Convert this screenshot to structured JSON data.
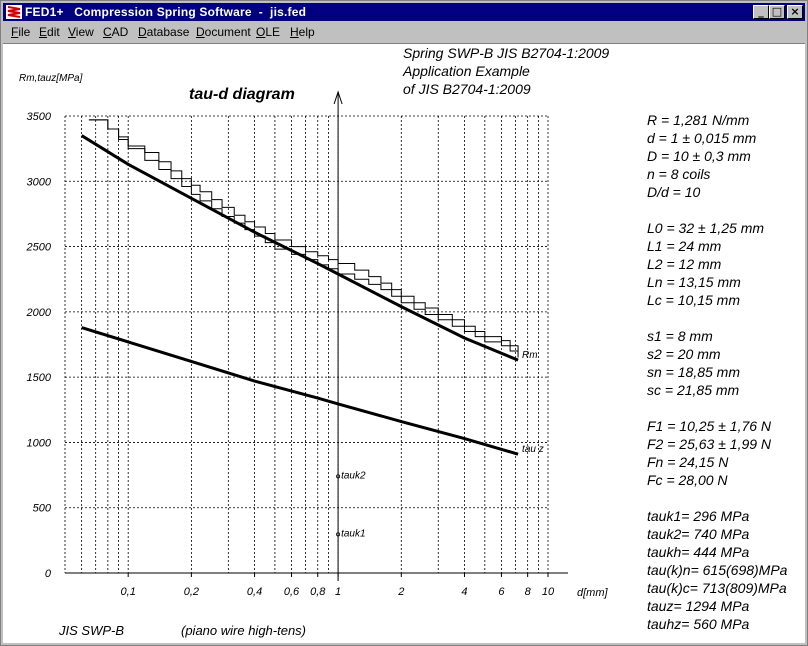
{
  "window": {
    "title": "FED1+   Compression Spring Software  -  jis.fed",
    "buttons": {
      "minimize": "_",
      "maximize": "□",
      "close": "×"
    }
  },
  "menu": [
    {
      "label": "File",
      "accel": "F",
      "rest": "ile"
    },
    {
      "label": "Edit",
      "accel": "E",
      "rest": "dit"
    },
    {
      "label": "View",
      "accel": "V",
      "rest": "iew"
    },
    {
      "label": "CAD",
      "accel": "C",
      "rest": "AD"
    },
    {
      "label": "Database",
      "accel": "D",
      "rest": "atabase"
    },
    {
      "label": "Document",
      "accel": "D",
      "rest": "ocument"
    },
    {
      "label": "OLE",
      "accel": "O",
      "rest": "LE"
    },
    {
      "label": "Help",
      "accel": "H",
      "rest": "elp"
    }
  ],
  "header": {
    "line1": "Spring  SWP-B  JIS B2704-1:2009",
    "line2": "Application Example",
    "line3": "of JIS B2704-1:2009"
  },
  "chart_data": {
    "type": "line",
    "title": "tau-d diagram",
    "ylabel": "Rm,tauz[MPa]",
    "xlabel": "d[mm]",
    "xscale": "log",
    "xlim": [
      0.05,
      10
    ],
    "ylim": [
      0,
      3500
    ],
    "y_ticks": [
      "3500",
      "3000",
      "2500",
      "2000",
      "1500",
      "1000",
      "500",
      "0"
    ],
    "y_tick_values": [
      3500,
      3000,
      2500,
      2000,
      1500,
      1000,
      500,
      0
    ],
    "x_ticks": [
      {
        "v": 0.1,
        "label": "0,1"
      },
      {
        "v": 0.2,
        "label": "0,2"
      },
      {
        "v": 0.4,
        "label": "0,4"
      },
      {
        "v": 0.6,
        "label": "0,6"
      },
      {
        "v": 0.8,
        "label": "0,8"
      },
      {
        "v": 1,
        "label": "1"
      },
      {
        "v": 2,
        "label": "2"
      },
      {
        "v": 4,
        "label": "4"
      },
      {
        "v": 6,
        "label": "6"
      },
      {
        "v": 8,
        "label": "8"
      },
      {
        "v": 10,
        "label": "10"
      }
    ],
    "grid": true,
    "series": [
      {
        "name": "Rm",
        "x": [
          0.06,
          0.1,
          0.2,
          0.4,
          0.8,
          1,
          2,
          4,
          7.2
        ],
        "y": [
          3350,
          3130,
          2870,
          2610,
          2370,
          2290,
          2040,
          1800,
          1630
        ]
      },
      {
        "name": "tau z",
        "x": [
          0.06,
          0.1,
          0.2,
          0.4,
          0.8,
          1,
          2,
          4,
          7.2
        ],
        "y": [
          1880,
          1770,
          1620,
          1470,
          1340,
          1295,
          1160,
          1030,
          910
        ]
      }
    ],
    "steps_upper": [
      [
        0.065,
        3470
      ],
      [
        0.08,
        3400
      ],
      [
        0.09,
        3340
      ],
      [
        0.1,
        3270
      ],
      [
        0.12,
        3220
      ],
      [
        0.14,
        3150
      ],
      [
        0.16,
        3080
      ],
      [
        0.18,
        3020
      ],
      [
        0.2,
        2970
      ],
      [
        0.22,
        2920
      ],
      [
        0.25,
        2860
      ],
      [
        0.28,
        2800
      ],
      [
        0.32,
        2740
      ],
      [
        0.36,
        2690
      ],
      [
        0.4,
        2650
      ],
      [
        0.45,
        2600
      ],
      [
        0.5,
        2550
      ],
      [
        0.6,
        2500
      ],
      [
        0.7,
        2460
      ],
      [
        0.8,
        2430
      ],
      [
        0.9,
        2400
      ],
      [
        1,
        2370
      ],
      [
        1.2,
        2320
      ],
      [
        1.4,
        2270
      ],
      [
        1.6,
        2220
      ],
      [
        1.8,
        2170
      ],
      [
        2,
        2120
      ],
      [
        2.3,
        2070
      ],
      [
        2.6,
        2030
      ],
      [
        3,
        1980
      ],
      [
        3.5,
        1940
      ],
      [
        4,
        1890
      ],
      [
        4.5,
        1850
      ],
      [
        5,
        1810
      ],
      [
        6,
        1780
      ],
      [
        6.6,
        1740
      ],
      [
        7.2,
        1700
      ]
    ],
    "steps_lower": [
      [
        0.065,
        3470
      ],
      [
        0.08,
        3400
      ],
      [
        0.09,
        3320
      ],
      [
        0.1,
        3250
      ],
      [
        0.12,
        3160
      ],
      [
        0.14,
        3090
      ],
      [
        0.16,
        3020
      ],
      [
        0.18,
        2960
      ],
      [
        0.2,
        2900
      ],
      [
        0.22,
        2850
      ],
      [
        0.25,
        2790
      ],
      [
        0.28,
        2730
      ],
      [
        0.32,
        2680
      ],
      [
        0.36,
        2630
      ],
      [
        0.4,
        2580
      ],
      [
        0.45,
        2530
      ],
      [
        0.5,
        2480
      ],
      [
        0.6,
        2440
      ],
      [
        0.7,
        2400
      ],
      [
        0.8,
        2360
      ],
      [
        0.9,
        2330
      ],
      [
        1,
        2290
      ],
      [
        1.2,
        2250
      ],
      [
        1.4,
        2210
      ],
      [
        1.6,
        2170
      ],
      [
        1.8,
        2120
      ],
      [
        2,
        2070
      ],
      [
        2.3,
        2020
      ],
      [
        2.6,
        1980
      ],
      [
        3,
        1940
      ],
      [
        3.5,
        1890
      ],
      [
        4,
        1850
      ],
      [
        4.5,
        1810
      ],
      [
        5,
        1770
      ],
      [
        6,
        1740
      ],
      [
        6.6,
        1700
      ],
      [
        7.2,
        1650
      ]
    ],
    "points": [
      {
        "name": "tauk1",
        "x": 1,
        "y": 296
      },
      {
        "name": "tauk2",
        "x": 1,
        "y": 740
      }
    ],
    "wire_marker_x": 1
  },
  "labels": {
    "rm": "Rm",
    "tauz": "tau z",
    "tauk1": "tauk1",
    "tauk2": "tauk2"
  },
  "footer": {
    "material": "JIS SWP-B",
    "description": "(piano wire high-tens)"
  },
  "results": [
    {
      "text": "R  = 1,281 N/mm",
      "gap": false
    },
    {
      "text": "d  = 1 ± 0,015 mm",
      "gap": false
    },
    {
      "text": "D  = 10 ± 0,3 mm",
      "gap": false
    },
    {
      "text": "n  = 8 coils",
      "gap": false
    },
    {
      "text": "D/d = 10",
      "gap": false
    },
    {
      "text": "L0 = 32 ± 1,25 mm",
      "gap": true
    },
    {
      "text": "L1 = 24 mm",
      "gap": false
    },
    {
      "text": "L2 = 12 mm",
      "gap": false
    },
    {
      "text": "Ln = 13,15 mm",
      "gap": false
    },
    {
      "text": "Lc = 10,15 mm",
      "gap": false
    },
    {
      "text": "s1 = 8 mm",
      "gap": true
    },
    {
      "text": "s2 = 20 mm",
      "gap": false
    },
    {
      "text": "sn = 18,85 mm",
      "gap": false
    },
    {
      "text": "sc = 21,85 mm",
      "gap": false
    },
    {
      "text": "F1 = 10,25 ± 1,76 N",
      "gap": true
    },
    {
      "text": "F2 = 25,63 ± 1,99 N",
      "gap": false
    },
    {
      "text": "Fn = 24,15 N",
      "gap": false
    },
    {
      "text": "Fc = 28,00 N",
      "gap": false
    },
    {
      "text": "tauk1=  296 MPa",
      "gap": true
    },
    {
      "text": "tauk2=  740 MPa",
      "gap": false
    },
    {
      "text": "taukh=  444 MPa",
      "gap": false
    },
    {
      "text": "tau(k)n= 615(698)MPa",
      "gap": false
    },
    {
      "text": "tau(k)c= 713(809)MPa",
      "gap": false
    },
    {
      "text": "tauz= 1294 MPa",
      "gap": false
    },
    {
      "text": "tauhz=  560 MPa",
      "gap": false
    }
  ],
  "colors": {
    "titlebar": "#000080",
    "face": "#c0c0c0",
    "client": "#ffffff",
    "grid": "#000000"
  }
}
